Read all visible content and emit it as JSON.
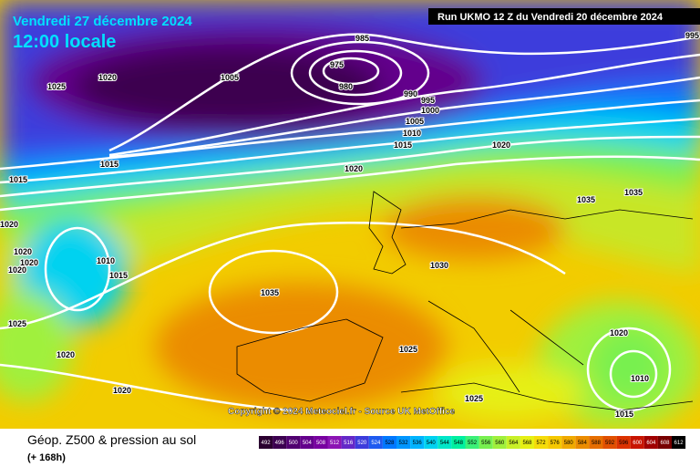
{
  "header": {
    "date": "Vendredi 27 décembre 2024",
    "time": "12:00 locale",
    "run": "Run UKMO 12 Z du Vendredi 20 décembre 2024"
  },
  "copyright": "Copyright © 2024 Meteociel.fr - Source UK MetOffice",
  "footer": {
    "title": "Géop. Z500 & pression au sol",
    "subtitle": "(+ 168h)"
  },
  "legend": {
    "labels": [
      492,
      496,
      500,
      504,
      508,
      512,
      516,
      520,
      524,
      528,
      532,
      536,
      540,
      544,
      548,
      552,
      556,
      560,
      564,
      568,
      572,
      576,
      580,
      584,
      588,
      592,
      596,
      600,
      604,
      608,
      612
    ],
    "colors": [
      "#2b0030",
      "#3c0050",
      "#500070",
      "#64008c",
      "#7800a0",
      "#8c14b4",
      "#6428c8",
      "#3c3cdc",
      "#1e5af0",
      "#0078ff",
      "#0096ff",
      "#00b4ff",
      "#00d2f0",
      "#00e6c8",
      "#00f0a0",
      "#3cf078",
      "#78f050",
      "#a0f03c",
      "#c8f028",
      "#e6f014",
      "#f5dc0a",
      "#f5c800",
      "#f0aa00",
      "#eb8c00",
      "#e66e00",
      "#e15000",
      "#dc3200",
      "#c81400",
      "#a00000",
      "#780000",
      "#000000"
    ]
  },
  "isobars": [
    985,
    975,
    980,
    990,
    995,
    1000,
    1005,
    1010,
    1015,
    1020,
    1025,
    1005,
    1020,
    1020,
    1015,
    1015,
    1020,
    1020,
    1020,
    1020,
    1010,
    1015,
    1035,
    1030,
    1035,
    1035,
    1025,
    1020,
    1025,
    1020,
    1010,
    1020,
    1025,
    1015,
    995
  ]
}
